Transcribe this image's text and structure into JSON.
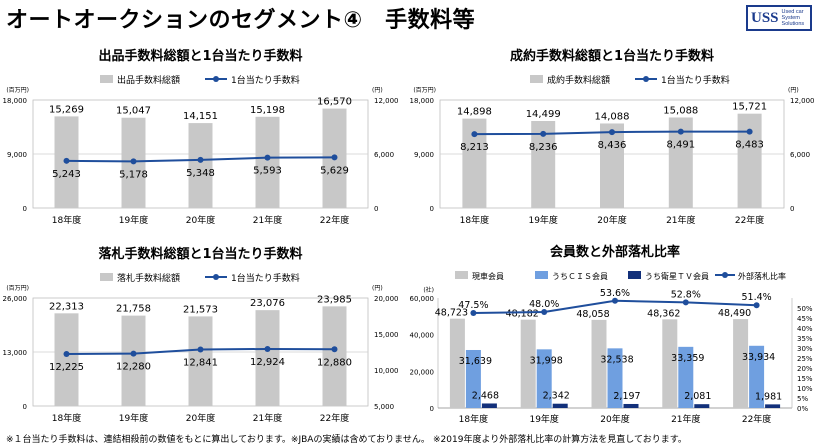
{
  "page": {
    "title": "オートオークションのセグメント④　手数料等",
    "logo_main": "USS",
    "logo_sub": [
      "Used car",
      "System",
      "Solutions"
    ]
  },
  "footnotes": {
    "left": "※１台当たり手数料は、連結相殺前の数値をもとに算出しております。※JBAの実績は含めておりません。",
    "right": "※2019年度より外部落札比率の計算方法を見直しております。"
  },
  "colors": {
    "bar_gray": "#c8c8c8",
    "line_blue": "#1f4e9c",
    "cis_blue": "#6f9fe0",
    "tv_navy": "#12307a"
  },
  "chart_data": [
    {
      "type": "bar",
      "title": "出品手数料総額と1台当たり手数料",
      "left_unit": "(百万円)",
      "right_unit": "(円)",
      "categories": [
        "18年度",
        "19年度",
        "20年度",
        "21年度",
        "22年度"
      ],
      "ylim": [
        0,
        18000
      ],
      "y2lim": [
        0,
        12000
      ],
      "yticks": [
        "18,000",
        "9,000",
        "0"
      ],
      "y2ticks": [
        "12,000",
        "6,000",
        "0"
      ],
      "legend": [
        "出品手数料総額",
        "1台当たり手数料"
      ],
      "series": [
        {
          "name": "出品手数料総額",
          "kind": "bar",
          "axis": "left",
          "values": [
            15269,
            15047,
            14151,
            15198,
            16570
          ],
          "labels": [
            "15,269",
            "15,047",
            "14,151",
            "15,198",
            "16,570"
          ]
        },
        {
          "name": "1台当たり手数料",
          "kind": "line",
          "axis": "right",
          "values": [
            5243,
            5178,
            5348,
            5593,
            5629
          ],
          "labels": [
            "5,243",
            "5,178",
            "5,348",
            "5,593",
            "5,629"
          ]
        }
      ]
    },
    {
      "type": "bar",
      "title": "成約手数料総額と1台当たり手数料",
      "left_unit": "(百万円)",
      "right_unit": "(円)",
      "categories": [
        "18年度",
        "19年度",
        "20年度",
        "21年度",
        "22年度"
      ],
      "ylim": [
        0,
        18000
      ],
      "y2lim": [
        0,
        12000
      ],
      "yticks": [
        "18,000",
        "9,000",
        "0"
      ],
      "y2ticks": [
        "12,000",
        "6,000",
        "0"
      ],
      "legend": [
        "成約手数料総額",
        "1台当たり手数料"
      ],
      "series": [
        {
          "name": "成約手数料総額",
          "kind": "bar",
          "axis": "left",
          "values": [
            14898,
            14499,
            14088,
            15088,
            15721
          ],
          "labels": [
            "14,898",
            "14,499",
            "14,088",
            "15,088",
            "15,721"
          ]
        },
        {
          "name": "1台当たり手数料",
          "kind": "line",
          "axis": "right",
          "values": [
            8213,
            8236,
            8436,
            8491,
            8483
          ],
          "labels": [
            "8,213",
            "8,236",
            "8,436",
            "8,491",
            "8,483"
          ]
        }
      ]
    },
    {
      "type": "bar",
      "title": "落札手数料総額と1台当たり手数料",
      "left_unit": "(百万円)",
      "right_unit": "(円)",
      "categories": [
        "18年度",
        "19年度",
        "20年度",
        "21年度",
        "22年度"
      ],
      "ylim": [
        0,
        26000
      ],
      "y2lim": [
        5000,
        20000
      ],
      "yticks": [
        "26,000",
        "13,000",
        "0"
      ],
      "y2ticks": [
        "20,000",
        "15,000",
        "10,000",
        "5,000"
      ],
      "legend": [
        "落札手数料総額",
        "1台当たり手数料"
      ],
      "series": [
        {
          "name": "落札手数料総額",
          "kind": "bar",
          "axis": "left",
          "values": [
            22313,
            21758,
            21573,
            23076,
            23985
          ],
          "labels": [
            "22,313",
            "21,758",
            "21,573",
            "23,076",
            "23,985"
          ]
        },
        {
          "name": "1台当たり手数料",
          "kind": "line",
          "axis": "right",
          "values": [
            12225,
            12280,
            12841,
            12924,
            12880
          ],
          "labels": [
            "12,225",
            "12,280",
            "12,841",
            "12,924",
            "12,880"
          ]
        }
      ]
    },
    {
      "type": "bar",
      "title": "会員数と外部落札比率",
      "left_unit": "(社)",
      "right_unit": "",
      "categories": [
        "18年度",
        "19年度",
        "20年度",
        "21年度",
        "22年度"
      ],
      "ylim": [
        0,
        60000
      ],
      "y2lim": [
        0,
        55
      ],
      "yticks": [
        "60,000",
        "40,000",
        "20,000",
        "0"
      ],
      "y2ticks": [
        "50%",
        "45%",
        "40%",
        "35%",
        "30%",
        "25%",
        "20%",
        "15%",
        "10%",
        "5%",
        "0%"
      ],
      "legend": [
        "現車会員",
        "うちＣＩＳ会員",
        "うち衛星ＴＶ会員",
        "外部落札比率"
      ],
      "series": [
        {
          "name": "現車会員",
          "kind": "bar",
          "axis": "left",
          "values": [
            48723,
            48182,
            48058,
            48362,
            48490
          ],
          "labels": [
            "48,723",
            "48,182",
            "48,058",
            "48,362",
            "48,490"
          ]
        },
        {
          "name": "うちＣＩＳ会員",
          "kind": "bar",
          "axis": "left",
          "values": [
            31639,
            31998,
            32538,
            33359,
            33934
          ],
          "labels": [
            "31,639",
            "31,998",
            "32,538",
            "33,359",
            "33,934"
          ]
        },
        {
          "name": "うち衛星ＴＶ会員",
          "kind": "bar",
          "axis": "left",
          "values": [
            2468,
            2342,
            2197,
            2081,
            1981
          ],
          "labels": [
            "2,468",
            "2,342",
            "2,197",
            "2,081",
            "1,981"
          ]
        },
        {
          "name": "外部落札比率",
          "kind": "line",
          "axis": "right",
          "values": [
            47.5,
            48.0,
            53.6,
            52.8,
            51.4
          ],
          "labels": [
            "47.5%",
            "48.0%",
            "53.6%",
            "52.8%",
            "51.4%"
          ]
        }
      ]
    }
  ]
}
